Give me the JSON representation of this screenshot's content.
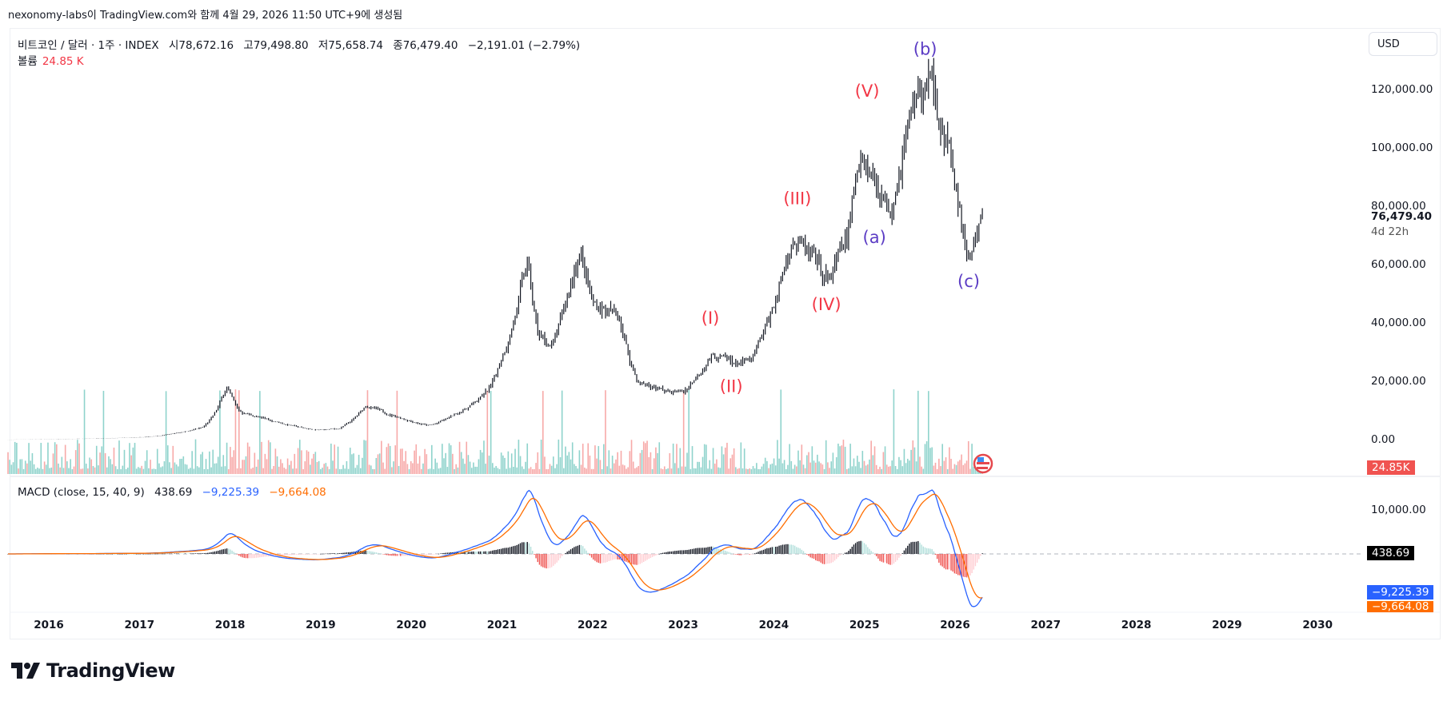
{
  "credit": "nexonomy-labs이 TradingView.com와 함께 4월 29, 2026 11:50 UTC+9에 생성됨",
  "legend": {
    "symbol": "비트코인 / 달러 · 1주 · INDEX",
    "open": "시78,672.16",
    "high": "고79,498.80",
    "low": "저75,658.74",
    "close": "종76,479.40",
    "change": "−2,191.01 (−2.79%)",
    "volume_label": "볼륨",
    "volume_value": "24.85 K"
  },
  "macd_legend": {
    "title": "MACD (close, 15, 40, 9)",
    "histogram": "438.69",
    "macd": "−9,225.39",
    "signal": "−9,664.08"
  },
  "currency_button": "USD",
  "price_axis": {
    "ticks": [
      "120,000.00",
      "100,000.00",
      "80,000.00",
      "60,000.00",
      "40,000.00",
      "20,000.00",
      "0.00"
    ],
    "last_price": "76,479.40",
    "countdown": "4d 22h",
    "volume_tag": "24.85K"
  },
  "macd_axis": {
    "ticks": [
      "10,000.00"
    ],
    "hist_tag": "438.69",
    "macd_tag": "−9,225.39",
    "signal_tag": "−9,664.08"
  },
  "time_axis": {
    "ticks": [
      "2016",
      "2017",
      "2018",
      "2019",
      "2020",
      "2021",
      "2022",
      "2023",
      "2024",
      "2025",
      "2026",
      "2027",
      "2028",
      "2029",
      "2030"
    ]
  },
  "logo_text": "TradingView",
  "colors": {
    "up_volume": "#8fd3cc",
    "down_volume": "#f7a9a8",
    "macd": "#2962ff",
    "signal": "#ff6d00",
    "wave_red": "#f23645",
    "wave_purple": "#5b3cc4",
    "volume_tag": "#f05350"
  },
  "chart_data": {
    "type": "candlestick",
    "interval": "1W",
    "price_scale": "linear",
    "ylim": [
      0,
      130000
    ],
    "xlim": [
      2015.55,
      2030.8
    ],
    "price_anchors": [
      [
        2015.55,
        250
      ],
      [
        2016.0,
        430
      ],
      [
        2016.5,
        650
      ],
      [
        2017.0,
        1000
      ],
      [
        2017.4,
        2500
      ],
      [
        2017.7,
        4500
      ],
      [
        2017.96,
        19000
      ],
      [
        2018.1,
        10000
      ],
      [
        2018.5,
        6500
      ],
      [
        2018.95,
        3500
      ],
      [
        2019.2,
        4000
      ],
      [
        2019.5,
        12000
      ],
      [
        2019.95,
        7200
      ],
      [
        2020.2,
        5000
      ],
      [
        2020.5,
        9200
      ],
      [
        2020.85,
        17000
      ],
      [
        2021.0,
        29000
      ],
      [
        2021.28,
        61000
      ],
      [
        2021.4,
        36000
      ],
      [
        2021.55,
        32000
      ],
      [
        2021.85,
        66000
      ],
      [
        2022.0,
        47000
      ],
      [
        2022.3,
        42000
      ],
      [
        2022.5,
        20000
      ],
      [
        2022.85,
        16500
      ],
      [
        2023.0,
        16800
      ],
      [
        2023.3,
        29000
      ],
      [
        2023.6,
        26500
      ],
      [
        2023.75,
        27000
      ],
      [
        2023.95,
        42000
      ],
      [
        2024.2,
        70000
      ],
      [
        2024.6,
        55000
      ],
      [
        2024.8,
        68000
      ],
      [
        2024.95,
        100000
      ],
      [
        2025.27,
        80000
      ],
      [
        2025.55,
        118000
      ],
      [
        2025.77,
        122000
      ],
      [
        2025.86,
        108000
      ],
      [
        2026.0,
        88000
      ],
      [
        2026.1,
        68000
      ],
      [
        2026.15,
        62000
      ],
      [
        2026.32,
        76479.4
      ]
    ],
    "last": {
      "open": 78672.16,
      "high": 79498.8,
      "low": 75658.74,
      "close": 76479.4,
      "volume": "24.85K"
    },
    "macd_params": {
      "source": "close",
      "fast": 15,
      "slow": 40,
      "signal": 9
    },
    "macd_last": {
      "histogram": 438.69,
      "macd": -9225.39,
      "signal": -9664.08
    },
    "wave_labels": [
      {
        "text": "(I)",
        "date": 2023.3,
        "price": 40000,
        "color": "red"
      },
      {
        "text": "(II)",
        "date": 2023.53,
        "price": 16500,
        "color": "red"
      },
      {
        "text": "(III)",
        "date": 2024.26,
        "price": 80800,
        "color": "red"
      },
      {
        "text": "(IV)",
        "date": 2024.58,
        "price": 44600,
        "color": "red"
      },
      {
        "text": "(V)",
        "date": 2025.03,
        "price": 117600,
        "color": "red"
      },
      {
        "text": "(a)",
        "date": 2025.11,
        "price": 67600,
        "color": "purple"
      },
      {
        "text": "(b)",
        "date": 2025.67,
        "price": 132000,
        "color": "purple"
      },
      {
        "text": "(c)",
        "date": 2026.15,
        "price": 52500,
        "color": "purple"
      }
    ]
  }
}
